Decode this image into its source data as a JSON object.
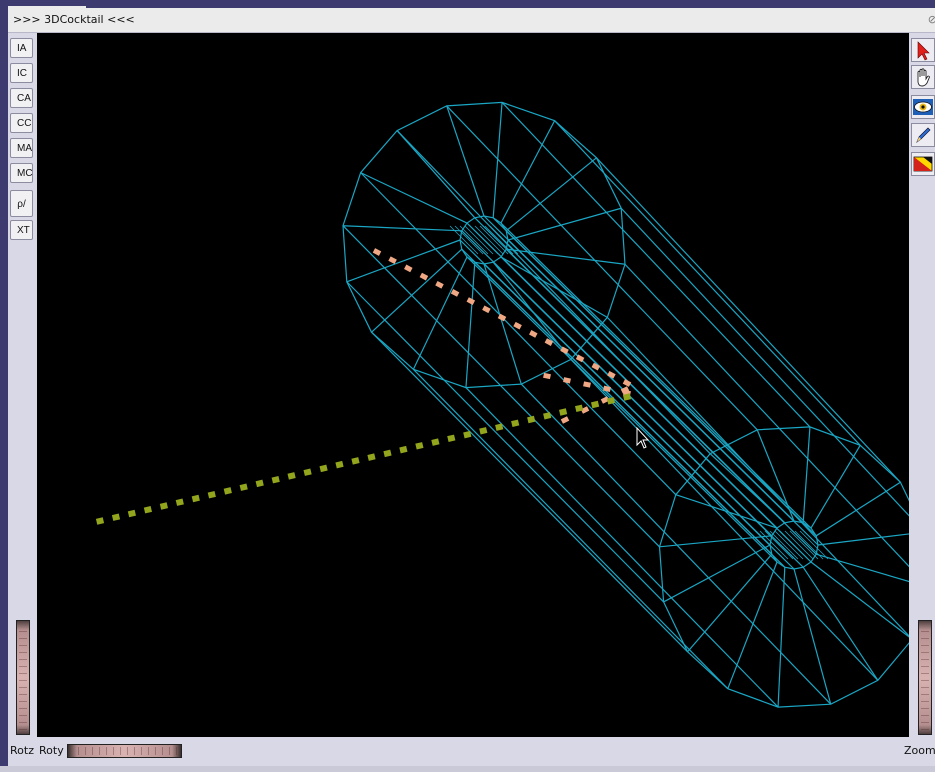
{
  "window": {
    "title": ">>> 3DCocktail <<<"
  },
  "left_toolbar": [
    "IA",
    "IC",
    "CA",
    "CC",
    "MA",
    "MC",
    "ρ/φ",
    "XT"
  ],
  "right_toolbar": [
    {
      "icon": "pointer-arrow-icon"
    },
    {
      "icon": "hand-icon"
    },
    {
      "icon": "eye-icon"
    },
    {
      "icon": "pen-icon"
    },
    {
      "icon": "color-palette-icon"
    }
  ],
  "bottom": {
    "rotz_label": "Rotz",
    "roty_label": "Roty",
    "zoom_label": "Zoom"
  },
  "colors": {
    "viewport_bg": "#000000",
    "wireframe": "#1aa6c4",
    "orange_track": "#f0a884",
    "green_track": "#93a51d",
    "window_bg": "#d8d8e6"
  }
}
